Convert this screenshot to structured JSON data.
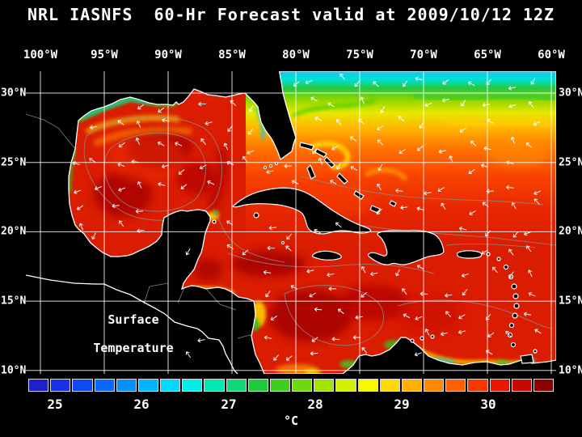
{
  "title": "NRL IASNFS  60-Hr Forecast valid at 2009/10/12 12Z",
  "axes": {
    "lon_labels": [
      "100°W",
      "95°W",
      "90°W",
      "85°W",
      "80°W",
      "75°W",
      "70°W",
      "65°W",
      "60°W"
    ],
    "lat_labels": [
      "30°N",
      "25°N",
      "20°N",
      "15°N",
      "10°N"
    ]
  },
  "map": {
    "annotation_line1": "Surface",
    "annotation_line2": "Temperature",
    "sea_base_color": "#da1c00",
    "land_color": "#000000",
    "coastline_color": "#ffffff",
    "contour_color": "#8c8c8c",
    "grid_color": "#ffffff",
    "vector_color": "#ffffff"
  },
  "colorbar": {
    "tick_labels": [
      "25",
      "26",
      "27",
      "28",
      "29",
      "30"
    ],
    "unit": "°C",
    "colors": [
      "#2020c8",
      "#1830e8",
      "#1048f8",
      "#0868ff",
      "#0090ff",
      "#00b4ff",
      "#00d8ff",
      "#00f0e8",
      "#00e8b0",
      "#10d878",
      "#20c840",
      "#40cc20",
      "#70d810",
      "#a0e400",
      "#d0f000",
      "#f8f800",
      "#ffd800",
      "#ffb000",
      "#ff8800",
      "#ff6000",
      "#f83800",
      "#e81800",
      "#c80800",
      "#8c0000"
    ]
  }
}
